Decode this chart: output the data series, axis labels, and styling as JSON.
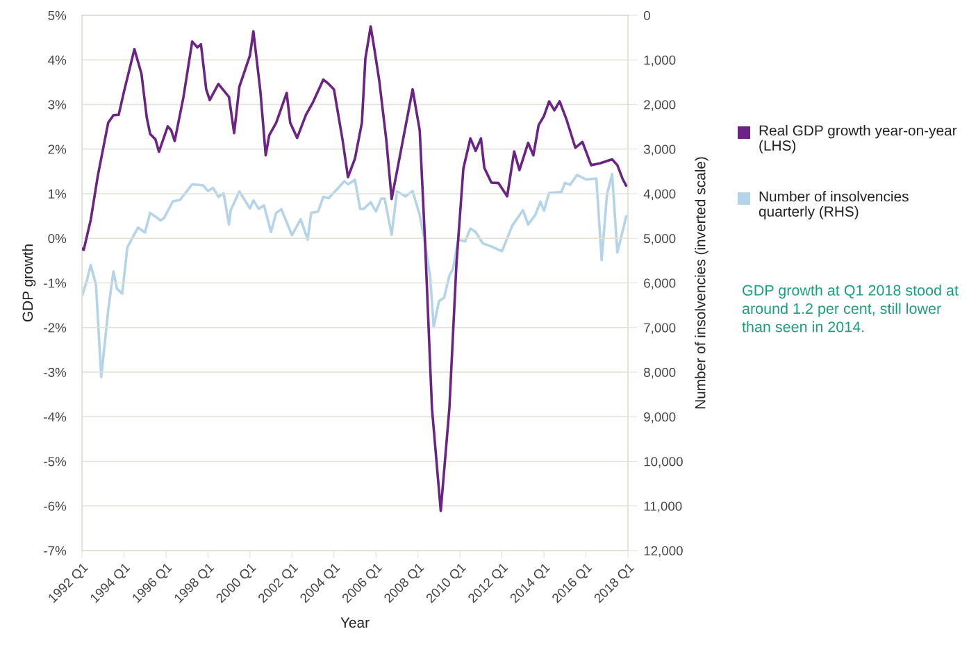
{
  "chart_data": {
    "type": "line",
    "xlabel": "Year",
    "ylabel": "GDP growth",
    "y2label": "Number of insolvencies (inverted scale)",
    "xlim": [
      "1992-01",
      "2018-01"
    ],
    "xticks": [
      {
        "value": "1992-01",
        "label": "1992 Q1"
      },
      {
        "value": "1994-01",
        "label": "1994 Q1"
      },
      {
        "value": "1996-01",
        "label": "1996 Q1"
      },
      {
        "value": "1998-01",
        "label": "1998 Q1"
      },
      {
        "value": "2000-01",
        "label": "2000 Q1"
      },
      {
        "value": "2002-01",
        "label": "2002 Q1"
      },
      {
        "value": "2004-01",
        "label": "2004 Q1"
      },
      {
        "value": "2006-01",
        "label": "2006 Q1"
      },
      {
        "value": "2008-01",
        "label": "2008 Q1"
      },
      {
        "value": "2010-01",
        "label": "2010 Q1"
      },
      {
        "value": "2012-01",
        "label": "2012 Q1"
      },
      {
        "value": "2014-01",
        "label": "2014 Q1"
      },
      {
        "value": "2016-01",
        "label": "2016 Q1"
      },
      {
        "value": "2018-01",
        "label": "2018 Q1"
      }
    ],
    "ylim": [
      -7,
      5
    ],
    "yticks": [
      {
        "value": 5,
        "label": "5%"
      },
      {
        "value": 4,
        "label": "4%"
      },
      {
        "value": 3,
        "label": "3%"
      },
      {
        "value": 2,
        "label": "2%"
      },
      {
        "value": 1,
        "label": "1%"
      },
      {
        "value": 0,
        "label": "0%"
      },
      {
        "value": -1,
        "label": "-1%"
      },
      {
        "value": -2,
        "label": "-2%"
      },
      {
        "value": -3,
        "label": "-3%"
      },
      {
        "value": -4,
        "label": "-4%"
      },
      {
        "value": -5,
        "label": "-5%"
      },
      {
        "value": -6,
        "label": "-6%"
      },
      {
        "value": -7,
        "label": "-7%"
      }
    ],
    "y2lim": [
      12000,
      0
    ],
    "y2ticks": [
      {
        "value": 0,
        "label": "0"
      },
      {
        "value": 1000,
        "label": "1,000"
      },
      {
        "value": 2000,
        "label": "2,000"
      },
      {
        "value": 3000,
        "label": "3,000"
      },
      {
        "value": 4000,
        "label": "4,000"
      },
      {
        "value": 5000,
        "label": "5,000"
      },
      {
        "value": 6000,
        "label": "6,000"
      },
      {
        "value": 7000,
        "label": "7,000"
      },
      {
        "value": 8000,
        "label": "8,000"
      },
      {
        "value": 9000,
        "label": "9,000"
      },
      {
        "value": 10000,
        "label": "10,000"
      },
      {
        "value": 11000,
        "label": "11,000"
      },
      {
        "value": 12000,
        "label": "12,000"
      }
    ],
    "grid": "y",
    "legend": "right",
    "marker": "none",
    "line_style": "solid",
    "annotations": [
      "GDP growth at Q1 2018 stood at around 1.2 per cent, still lower than seen in 2014."
    ],
    "series": [
      {
        "name": "Real GDP growth year-on-year (LHS)",
        "color": "#6b2384",
        "x": [
          "1992-01",
          "1992-02",
          "1992-06",
          "1992-10",
          "1993-04",
          "1993-07",
          "1993-10",
          "1994-01",
          "1994-07",
          "1994-11",
          "1995-02",
          "1995-04",
          "1995-07",
          "1995-09",
          "1996-02",
          "1996-04",
          "1996-06",
          "1996-11",
          "1997-04",
          "1997-07",
          "1997-09",
          "1997-12",
          "1998-02",
          "1998-07",
          "1999-01",
          "1999-04",
          "1999-07",
          "2000-01",
          "2000-03",
          "2000-07",
          "2000-10",
          "2000-12",
          "2001-04",
          "2001-10",
          "2001-12",
          "2002-04",
          "2002-09",
          "2003-01",
          "2003-07",
          "2003-10",
          "2004-01",
          "2004-06",
          "2004-09",
          "2005-01",
          "2005-05",
          "2005-07",
          "2005-10",
          "2005-12",
          "2006-03",
          "2006-07",
          "2006-10",
          "2007-01",
          "2007-05",
          "2007-10",
          "2008-02",
          "2008-05",
          "2008-09",
          "2009-02",
          "2009-07",
          "2009-11",
          "2010-03",
          "2010-07",
          "2010-10",
          "2011-01",
          "2011-03",
          "2011-07",
          "2011-11",
          "2012-04",
          "2012-08",
          "2012-11",
          "2013-04",
          "2013-07",
          "2013-10",
          "2014-01",
          "2014-04",
          "2014-07",
          "2014-10",
          "2015-02",
          "2015-07",
          "2015-11",
          "2016-04",
          "2016-09",
          "2017-04",
          "2017-07",
          "2017-10",
          "2017-12"
        ],
        "values": [
          -0.23,
          -0.26,
          0.41,
          1.39,
          2.59,
          2.76,
          2.77,
          3.29,
          4.24,
          3.69,
          2.71,
          2.34,
          2.22,
          1.94,
          2.51,
          2.42,
          2.18,
          3.17,
          4.41,
          4.28,
          4.35,
          3.34,
          3.1,
          3.46,
          3.17,
          2.36,
          3.4,
          4.1,
          4.64,
          3.29,
          1.86,
          2.31,
          2.59,
          3.26,
          2.59,
          2.25,
          2.77,
          3.05,
          3.56,
          3.46,
          3.34,
          2.19,
          1.37,
          1.79,
          2.59,
          4.03,
          4.75,
          4.27,
          3.52,
          2.19,
          0.88,
          1.5,
          2.31,
          3.34,
          2.42,
          0.0,
          -3.81,
          -6.11,
          -3.81,
          -0.57,
          1.56,
          2.24,
          1.96,
          2.24,
          1.58,
          1.25,
          1.24,
          0.94,
          1.95,
          1.53,
          2.14,
          1.86,
          2.54,
          2.74,
          3.07,
          2.87,
          3.07,
          2.65,
          2.03,
          2.16,
          1.64,
          1.68,
          1.77,
          1.64,
          1.33,
          1.18
        ]
      },
      {
        "name": "Number of insolvencies quarterly (RHS)",
        "color": "#b4d4ea",
        "axis": "y2",
        "x": [
          "1992-01",
          "1992-04",
          "1992-06",
          "1992-09",
          "1992-12",
          "1993-04",
          "1993-07",
          "1993-09",
          "1993-12",
          "1994-03",
          "1994-09",
          "1995-01",
          "1995-04",
          "1995-10",
          "1995-12",
          "1996-05",
          "1996-09",
          "1997-04",
          "1997-10",
          "1998-01",
          "1998-04",
          "1998-07",
          "1998-10",
          "1999-01",
          "1999-02",
          "1999-07",
          "1999-10",
          "2000-01",
          "2000-03",
          "2000-06",
          "2000-09",
          "2001-01",
          "2001-04",
          "2001-07",
          "2002-01",
          "2002-06",
          "2002-10",
          "2002-12",
          "2003-04",
          "2003-07",
          "2003-10",
          "2004-07",
          "2004-09",
          "2005-01",
          "2005-04",
          "2005-06",
          "2005-10",
          "2006-01",
          "2006-04",
          "2006-06",
          "2006-10",
          "2007-01",
          "2007-06",
          "2007-10",
          "2008-02",
          "2008-05",
          "2008-08",
          "2008-10",
          "2009-01",
          "2009-04",
          "2009-07",
          "2009-09",
          "2009-12",
          "2010-04",
          "2010-07",
          "2010-10",
          "2011-02",
          "2011-08",
          "2012-01",
          "2012-07",
          "2013-01",
          "2013-04",
          "2013-08",
          "2013-11",
          "2014-01",
          "2014-04",
          "2014-11",
          "2015-01",
          "2015-04",
          "2015-08",
          "2016-01",
          "2016-07",
          "2016-10",
          "2017-01",
          "2017-04",
          "2017-07",
          "2017-12",
          "2018-01"
        ],
        "values": [
          6300,
          5920,
          5600,
          6040,
          8110,
          6620,
          5740,
          6130,
          6240,
          5200,
          4760,
          4870,
          4430,
          4600,
          4540,
          4170,
          4140,
          3790,
          3810,
          3940,
          3870,
          4070,
          3990,
          4690,
          4370,
          3950,
          4140,
          4330,
          4150,
          4340,
          4260,
          4860,
          4430,
          4350,
          4930,
          4570,
          5030,
          4430,
          4400,
          4070,
          4100,
          3720,
          3790,
          3690,
          4340,
          4340,
          4190,
          4400,
          4110,
          4110,
          4920,
          3950,
          4060,
          3940,
          4480,
          5090,
          5870,
          6990,
          6410,
          6330,
          5840,
          5690,
          5030,
          5070,
          4780,
          4860,
          5110,
          5200,
          5290,
          4710,
          4370,
          4690,
          4480,
          4180,
          4380,
          3980,
          3960,
          3760,
          3800,
          3580,
          3680,
          3660,
          5490,
          4020,
          3560,
          5320,
          4510,
          4500
        ]
      }
    ]
  }
}
